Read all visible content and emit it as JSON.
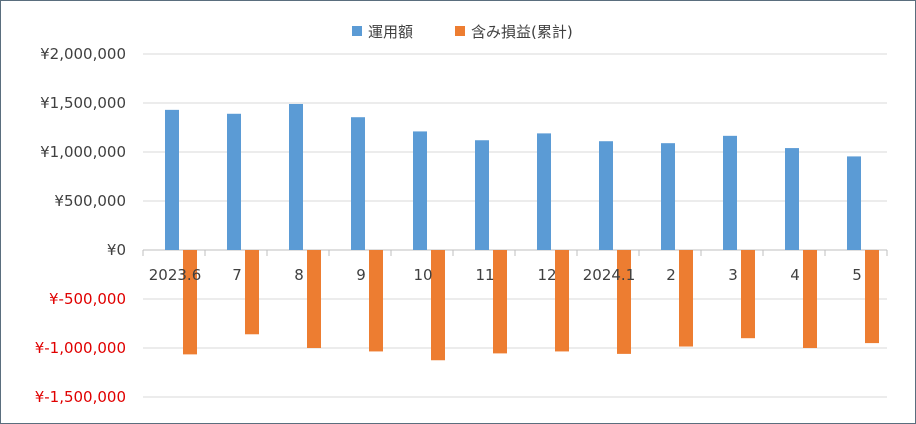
{
  "chart_data": {
    "type": "bar",
    "categories": [
      "2023.6",
      "7",
      "8",
      "9",
      "10",
      "11",
      "12",
      "2024.1",
      "2",
      "3",
      "4",
      "5"
    ],
    "series": [
      {
        "name": "運用額",
        "color": "#5b9bd5",
        "values": [
          1430000,
          1390000,
          1490000,
          1355000,
          1210000,
          1120000,
          1190000,
          1110000,
          1090000,
          1165000,
          1040000,
          955000
        ]
      },
      {
        "name": "含み損益(累計)",
        "color": "#ed7d31",
        "values": [
          -1065000,
          -860000,
          -1000000,
          -1035000,
          -1125000,
          -1055000,
          -1035000,
          -1060000,
          -985000,
          -900000,
          -1000000,
          -950000
        ]
      }
    ],
    "yticks": [
      {
        "value": 2000000,
        "label": "¥2,000,000"
      },
      {
        "value": 1500000,
        "label": "¥1,500,000"
      },
      {
        "value": 1000000,
        "label": "¥1,000,000"
      },
      {
        "value": 500000,
        "label": "¥500,000"
      },
      {
        "value": 0,
        "label": "¥0"
      },
      {
        "value": -500000,
        "label": "¥-500,000"
      },
      {
        "value": -1000000,
        "label": "¥-1,000,000"
      },
      {
        "value": -1500000,
        "label": "¥-1,500,000"
      }
    ],
    "ylim": [
      -1500000,
      2000000
    ],
    "negative_label_color": "#e00000",
    "grid": true,
    "legend_position": "top-center",
    "title": "",
    "xlabel": "",
    "ylabel": ""
  }
}
